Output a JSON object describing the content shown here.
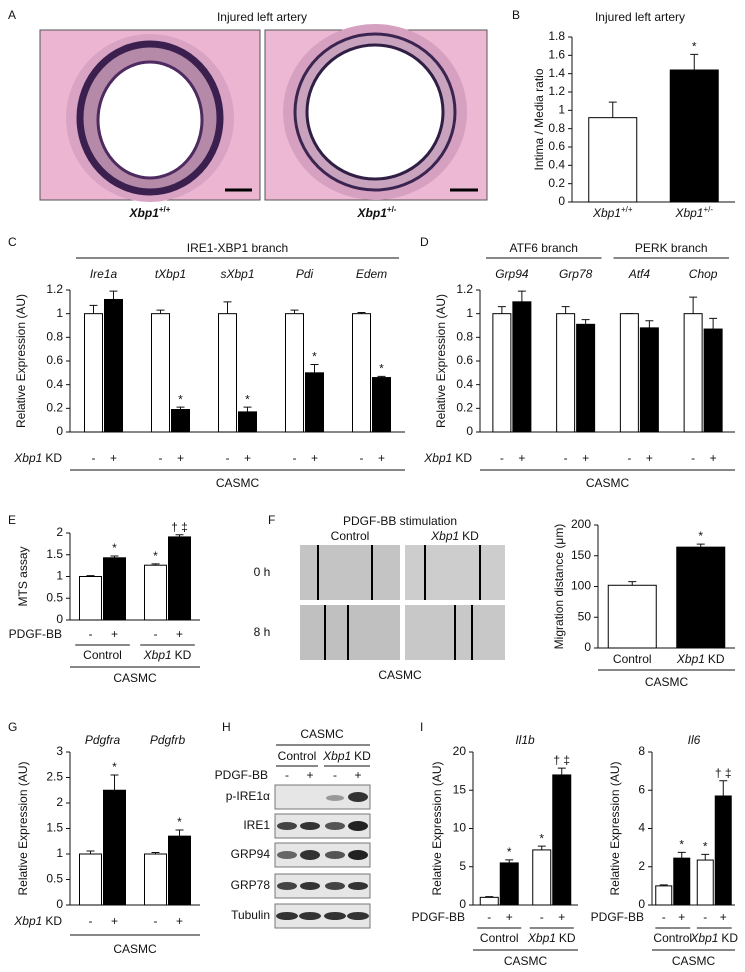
{
  "panel_A": {
    "panel": "A",
    "title": "Injured left artery",
    "labels": [
      {
        "italic": "Xbp1",
        "sup": "+/+"
      },
      {
        "italic": "Xbp1",
        "sup": "+/-"
      }
    ]
  },
  "panel_F": {
    "panel": "F",
    "title": "PDGF-BB stimulation",
    "columns": [
      "Control",
      {
        "italic": "Xbp1",
        "plain": "KD"
      }
    ],
    "rows": [
      "0 h",
      "8 h"
    ],
    "footer": "CASMC"
  },
  "panel_H": {
    "panel": "H",
    "header": "CASMC",
    "groups": [
      "Control",
      {
        "italic": "Xbp1",
        "plain": "KD"
      }
    ],
    "condition": "PDGF-BB",
    "categories": [
      "-",
      "+",
      "-",
      "+"
    ],
    "rows": [
      "p-IRE1α",
      "IRE1",
      "GRP94",
      "GRP78",
      "Tubulin"
    ]
  },
  "chart_data": [
    {
      "type": "bar",
      "panel": "B",
      "title": "Injured left artery",
      "ylabel": "Intima / Media ratio",
      "categories": [
        {
          "italic": "Xbp1",
          "sup": "+/+"
        },
        {
          "italic": "Xbp1",
          "sup": "+/-"
        }
      ],
      "values": [
        0.92,
        1.44
      ],
      "errors": [
        0.17,
        0.17
      ],
      "colors": [
        "#ffffff",
        "#000000"
      ],
      "stars": [
        null,
        "*"
      ],
      "ylim": [
        0,
        1.8
      ],
      "yticks": [
        0,
        0.2,
        0.4,
        0.6,
        0.8,
        1,
        1.2,
        1.4,
        1.6,
        1.8
      ]
    },
    {
      "type": "bar",
      "panel": "C",
      "branches": [
        {
          "label": "IRE1-XBP1 branch"
        }
      ],
      "groups": [
        {
          "italic": "Ire1a"
        },
        {
          "italic": "tXbp1"
        },
        {
          "italic": "sXbp1"
        },
        {
          "italic": "Pdi"
        },
        {
          "italic": "Edem"
        }
      ],
      "ylabel": "Relative Expression (AU)",
      "condition": {
        "italic": "Xbp1",
        "plain": "KD"
      },
      "categories": [
        "-",
        "+",
        "-",
        "+",
        "-",
        "+",
        "-",
        "+",
        "-",
        "+"
      ],
      "values": [
        1.0,
        1.12,
        1.0,
        0.19,
        1.0,
        0.17,
        1.0,
        0.5,
        1.0,
        0.46
      ],
      "errors": [
        0.07,
        0.07,
        0.03,
        0.02,
        0.1,
        0.04,
        0.03,
        0.07,
        0.01,
        0.01
      ],
      "colors": [
        "#ffffff",
        "#000000",
        "#ffffff",
        "#000000",
        "#ffffff",
        "#000000",
        "#ffffff",
        "#000000",
        "#ffffff",
        "#000000"
      ],
      "stars": [
        null,
        null,
        null,
        "*",
        null,
        "*",
        null,
        "*",
        null,
        "*"
      ],
      "ylim": [
        0,
        1.2
      ],
      "yticks": [
        0,
        0.2,
        0.4,
        0.6,
        0.8,
        1,
        1.2
      ],
      "footer": "CASMC"
    },
    {
      "type": "bar",
      "panel": "D",
      "branches": [
        {
          "label": "ATF6 branch"
        },
        {
          "label": "PERK branch"
        }
      ],
      "groups": [
        {
          "italic": "Grp94"
        },
        {
          "italic": "Grp78"
        },
        {
          "italic": "Atf4"
        },
        {
          "italic": "Chop"
        }
      ],
      "ylabel": "Relative Expression (AU)",
      "condition": {
        "italic": "Xbp1",
        "plain": "KD"
      },
      "categories": [
        "-",
        "+",
        "-",
        "+",
        "-",
        "+",
        "-",
        "+"
      ],
      "values": [
        1.0,
        1.1,
        1.0,
        0.91,
        1.0,
        0.88,
        1.0,
        0.87
      ],
      "errors": [
        0.06,
        0.09,
        0.06,
        0.04,
        0.0,
        0.06,
        0.14,
        0.09
      ],
      "colors": [
        "#ffffff",
        "#000000",
        "#ffffff",
        "#000000",
        "#ffffff",
        "#000000",
        "#ffffff",
        "#000000"
      ],
      "stars": [
        null,
        null,
        null,
        null,
        null,
        null,
        null,
        null
      ],
      "ylim": [
        0,
        1.2
      ],
      "yticks": [
        0,
        0.2,
        0.4,
        0.6,
        0.8,
        1,
        1.2
      ],
      "footer": "CASMC"
    },
    {
      "type": "bar",
      "panel": "E",
      "ylabel": "MTS assay",
      "condition": "PDGF-BB",
      "categories": [
        "-",
        "+",
        "-",
        "+"
      ],
      "groups": [
        "Control",
        {
          "italic": "Xbp1",
          "plain": "KD"
        }
      ],
      "values": [
        1.0,
        1.43,
        1.26,
        1.91
      ],
      "errors": [
        0.02,
        0.04,
        0.03,
        0.05
      ],
      "colors": [
        "#ffffff",
        "#000000",
        "#ffffff",
        "#000000"
      ],
      "stars": [
        null,
        "*",
        "*",
        "† ‡"
      ],
      "ylim": [
        0,
        2
      ],
      "yticks": [
        0,
        0.5,
        1,
        1.5,
        2
      ],
      "footer": "CASMC"
    },
    {
      "type": "bar",
      "ylabel": "Migration distance (μm)",
      "categories": [
        "Control",
        {
          "italic": "Xbp1",
          "plain": "KD"
        }
      ],
      "values": [
        102,
        164
      ],
      "errors": [
        6,
        5
      ],
      "colors": [
        "#ffffff",
        "#000000"
      ],
      "stars": [
        null,
        "*"
      ],
      "ylim": [
        0,
        200
      ],
      "yticks": [
        0,
        50,
        100,
        150,
        200
      ],
      "footer": "CASMC"
    },
    {
      "type": "bar",
      "panel": "G",
      "groups": [
        {
          "italic": "Pdgfra"
        },
        {
          "italic": "Pdgfrb"
        }
      ],
      "ylabel": "Relative Expression (AU)",
      "condition": {
        "italic": "Xbp1",
        "plain": "KD"
      },
      "categories": [
        "-",
        "+",
        "-",
        "+"
      ],
      "values": [
        1.0,
        2.25,
        1.0,
        1.35
      ],
      "errors": [
        0.06,
        0.3,
        0.03,
        0.12
      ],
      "colors": [
        "#ffffff",
        "#000000",
        "#ffffff",
        "#000000"
      ],
      "stars": [
        null,
        "*",
        null,
        "*"
      ],
      "ylim": [
        0,
        3
      ],
      "yticks": [
        0,
        0.5,
        1,
        1.5,
        2,
        2.5,
        3
      ],
      "footer": "CASMC"
    },
    {
      "type": "bar",
      "panel": "I",
      "title": {
        "italic": "Il1b"
      },
      "ylabel": "Relative Expression (AU)",
      "condition": "PDGF-BB",
      "categories": [
        "-",
        "+",
        "-",
        "+"
      ],
      "groups": [
        "Control",
        {
          "italic": "Xbp1",
          "plain": "KD"
        }
      ],
      "values": [
        1.0,
        5.5,
        7.2,
        17.0
      ],
      "errors": [
        0.1,
        0.4,
        0.5,
        0.9
      ],
      "colors": [
        "#ffffff",
        "#000000",
        "#ffffff",
        "#000000"
      ],
      "stars": [
        null,
        "*",
        "*",
        "† ‡"
      ],
      "ylim": [
        0,
        20
      ],
      "yticks": [
        0,
        5,
        10,
        15,
        20
      ],
      "footer": "CASMC"
    },
    {
      "type": "bar",
      "title": {
        "italic": "Il6"
      },
      "ylabel": "Relative Expression (AU)",
      "condition": "PDGF-BB",
      "categories": [
        "-",
        "+",
        "-",
        "+"
      ],
      "groups": [
        "Control",
        {
          "italic": "Xbp1",
          "plain": "KD"
        }
      ],
      "values": [
        1.0,
        2.45,
        2.35,
        5.7
      ],
      "errors": [
        0.05,
        0.3,
        0.3,
        0.8
      ],
      "colors": [
        "#ffffff",
        "#000000",
        "#ffffff",
        "#000000"
      ],
      "stars": [
        null,
        "*",
        "*",
        "† ‡"
      ],
      "ylim": [
        0,
        8
      ],
      "yticks": [
        0,
        2,
        4,
        6,
        8
      ],
      "footer": "CASMC"
    }
  ]
}
